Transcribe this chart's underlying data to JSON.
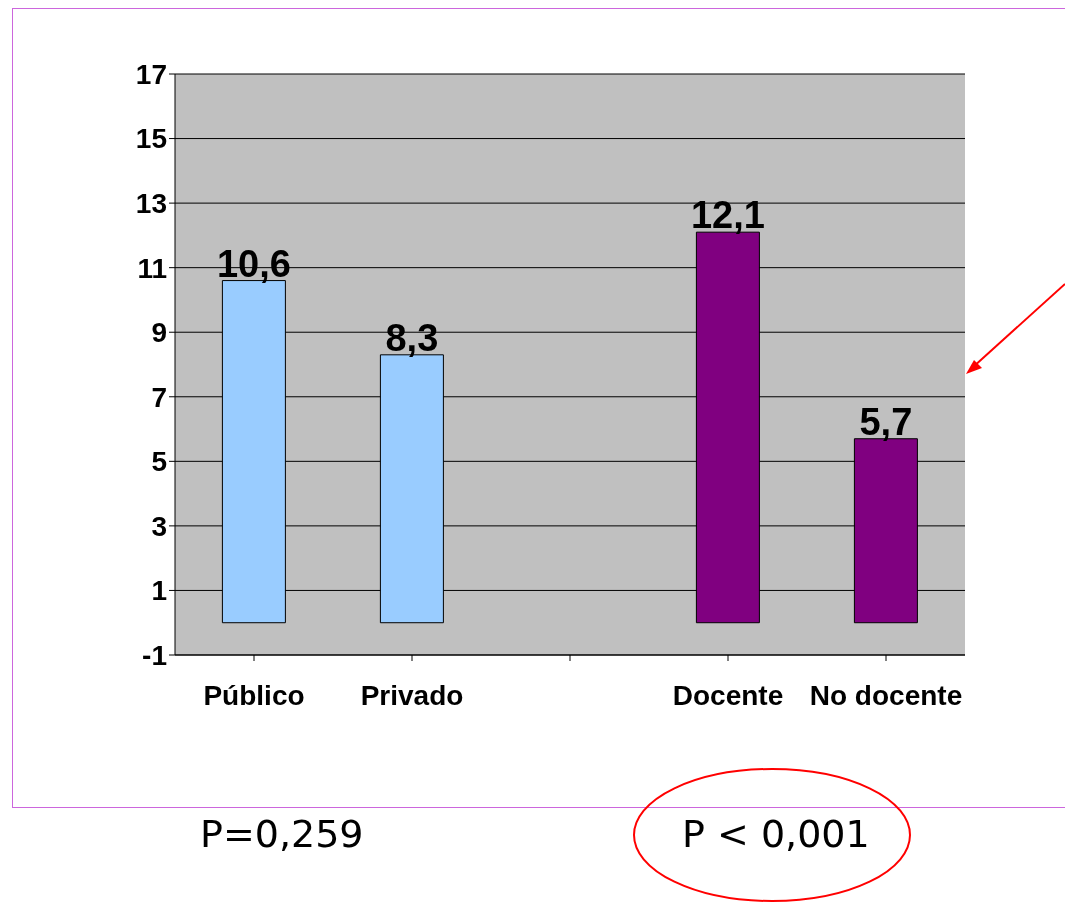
{
  "chart_data": {
    "type": "bar",
    "categories": [
      "Público",
      "Privado",
      null,
      "Docente",
      "No docente"
    ],
    "values": [
      10.6,
      8.3,
      null,
      12.1,
      5.7
    ],
    "colors": [
      "#99ccff",
      "#99ccff",
      null,
      "#800080",
      "#800080"
    ],
    "value_labels": [
      "10,6",
      "8,3",
      null,
      "12,1",
      "5,7"
    ],
    "ylim": [
      -1,
      17
    ],
    "yticks": [
      -1,
      1,
      3,
      5,
      7,
      9,
      11,
      13,
      15,
      17
    ],
    "grid": "y",
    "annotations": [
      "P=0,259",
      "P < 0,001"
    ]
  }
}
